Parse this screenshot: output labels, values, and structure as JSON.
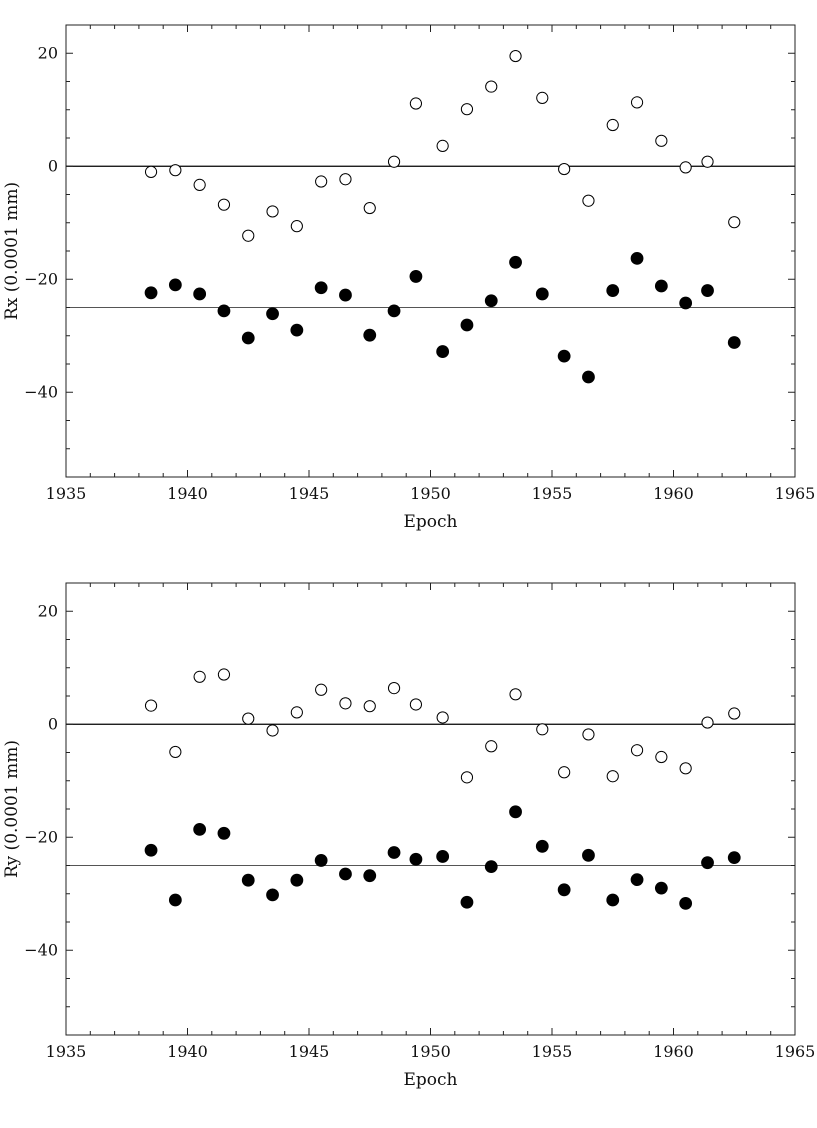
{
  "chart_data": [
    {
      "type": "scatter",
      "title": "",
      "xlabel": "Epoch",
      "ylabel": "Rx (0.0001 mm)",
      "xlim": [
        1935,
        1965
      ],
      "ylim": [
        -55,
        25
      ],
      "xticks": [
        1935,
        1940,
        1945,
        1950,
        1955,
        1960,
        1965
      ],
      "yticks": [
        20,
        0,
        -20,
        -40
      ],
      "ytick_labels": [
        "20",
        "0",
        "−20",
        "−40"
      ],
      "reference_lines": [
        0,
        -25
      ],
      "grid": false,
      "series": [
        {
          "style": "open-circle",
          "points": [
            [
              1938.5,
              -1
            ],
            [
              1939.5,
              -0.7
            ],
            [
              1940.5,
              -3.3
            ],
            [
              1941.5,
              -6.8
            ],
            [
              1942.5,
              -12.3
            ],
            [
              1943.5,
              -8
            ],
            [
              1944.5,
              -10.6
            ],
            [
              1945.5,
              -2.7
            ],
            [
              1946.5,
              -2.3
            ],
            [
              1947.5,
              -7.4
            ],
            [
              1948.5,
              0.8
            ],
            [
              1949.4,
              11.1
            ],
            [
              1950.5,
              3.6
            ],
            [
              1951.5,
              10.1
            ],
            [
              1952.5,
              14.1
            ],
            [
              1953.5,
              19.5
            ],
            [
              1954.6,
              12.1
            ],
            [
              1955.5,
              -0.5
            ],
            [
              1956.5,
              -6.1
            ],
            [
              1957.5,
              7.3
            ],
            [
              1958.5,
              11.3
            ],
            [
              1959.5,
              4.5
            ],
            [
              1960.5,
              -0.2
            ],
            [
              1961.4,
              0.8
            ],
            [
              1962.5,
              -9.9
            ]
          ]
        },
        {
          "style": "filled-circle",
          "points": [
            [
              1938.5,
              -22.4
            ],
            [
              1939.5,
              -21
            ],
            [
              1940.5,
              -22.6
            ],
            [
              1941.5,
              -25.6
            ],
            [
              1942.5,
              -30.4
            ],
            [
              1943.5,
              -26.1
            ],
            [
              1944.5,
              -29
            ],
            [
              1945.5,
              -21.5
            ],
            [
              1946.5,
              -22.8
            ],
            [
              1947.5,
              -29.9
            ],
            [
              1948.5,
              -25.6
            ],
            [
              1949.4,
              -19.5
            ],
            [
              1950.5,
              -32.8
            ],
            [
              1951.5,
              -28.1
            ],
            [
              1952.5,
              -23.8
            ],
            [
              1953.5,
              -17
            ],
            [
              1954.6,
              -22.6
            ],
            [
              1955.5,
              -33.6
            ],
            [
              1956.5,
              -37.3
            ],
            [
              1957.5,
              -22
            ],
            [
              1958.5,
              -16.3
            ],
            [
              1959.5,
              -21.2
            ],
            [
              1960.5,
              -24.2
            ],
            [
              1961.4,
              -22
            ],
            [
              1962.5,
              -31.2
            ]
          ]
        }
      ]
    },
    {
      "type": "scatter",
      "title": "",
      "xlabel": "Epoch",
      "ylabel": "Ry (0.0001 mm)",
      "xlim": [
        1935,
        1965
      ],
      "ylim": [
        -55,
        25
      ],
      "xticks": [
        1935,
        1940,
        1945,
        1950,
        1955,
        1960,
        1965
      ],
      "yticks": [
        20,
        0,
        -20,
        -40
      ],
      "ytick_labels": [
        "20",
        "0",
        "−20",
        "−40"
      ],
      "reference_lines": [
        0,
        -25
      ],
      "grid": false,
      "series": [
        {
          "style": "open-circle",
          "points": [
            [
              1938.5,
              3.3
            ],
            [
              1939.5,
              -4.9
            ],
            [
              1940.5,
              8.4
            ],
            [
              1941.5,
              8.8
            ],
            [
              1942.5,
              1
            ],
            [
              1943.5,
              -1.1
            ],
            [
              1944.5,
              2.1
            ],
            [
              1945.5,
              6.1
            ],
            [
              1946.5,
              3.7
            ],
            [
              1947.5,
              3.2
            ],
            [
              1948.5,
              6.4
            ],
            [
              1949.4,
              3.5
            ],
            [
              1950.5,
              1.2
            ],
            [
              1951.5,
              -9.4
            ],
            [
              1952.5,
              -3.9
            ],
            [
              1953.5,
              5.3
            ],
            [
              1954.6,
              -0.9
            ],
            [
              1955.5,
              -8.5
            ],
            [
              1956.5,
              -1.8
            ],
            [
              1957.5,
              -9.2
            ],
            [
              1958.5,
              -4.6
            ],
            [
              1959.5,
              -5.8
            ],
            [
              1960.5,
              -7.8
            ],
            [
              1961.4,
              0.3
            ],
            [
              1962.5,
              1.9
            ]
          ]
        },
        {
          "style": "filled-circle",
          "points": [
            [
              1938.5,
              -22.3
            ],
            [
              1939.5,
              -31.1
            ],
            [
              1940.5,
              -18.6
            ],
            [
              1941.5,
              -19.3
            ],
            [
              1942.5,
              -27.6
            ],
            [
              1943.5,
              -30.2
            ],
            [
              1944.5,
              -27.6
            ],
            [
              1945.5,
              -24.1
            ],
            [
              1946.5,
              -26.5
            ],
            [
              1947.5,
              -26.8
            ],
            [
              1948.5,
              -22.7
            ],
            [
              1949.4,
              -23.9
            ],
            [
              1950.5,
              -23.4
            ],
            [
              1951.5,
              -31.5
            ],
            [
              1952.5,
              -25.2
            ],
            [
              1953.5,
              -15.5
            ],
            [
              1954.6,
              -21.6
            ],
            [
              1955.5,
              -29.3
            ],
            [
              1956.5,
              -23.2
            ],
            [
              1957.5,
              -31.1
            ],
            [
              1958.5,
              -27.5
            ],
            [
              1959.5,
              -29
            ],
            [
              1960.5,
              -31.7
            ],
            [
              1961.4,
              -24.5
            ],
            [
              1962.5,
              -23.6
            ]
          ]
        }
      ]
    }
  ]
}
